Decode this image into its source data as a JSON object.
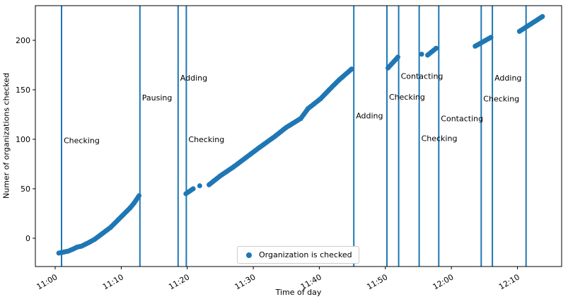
{
  "chart_data": {
    "type": "scatter",
    "title": "",
    "xlabel": "Time of day",
    "ylabel": "Numer of organizations checked",
    "legend": {
      "label": "Organization is checked",
      "position": "lower center"
    },
    "accent_color": "#1f77b4",
    "spine_color": "#000000",
    "legend_border_color": "#cccccc",
    "grid": false,
    "x_axis": {
      "unit": "minutes after 11:00",
      "lim": [
        -3.0,
        76.7
      ],
      "ticks": [
        {
          "t": 0,
          "label": "11:00"
        },
        {
          "t": 10,
          "label": "11:10"
        },
        {
          "t": 20,
          "label": "11:20"
        },
        {
          "t": 30,
          "label": "11:30"
        },
        {
          "t": 40,
          "label": "11:40"
        },
        {
          "t": 50,
          "label": "11:50"
        },
        {
          "t": 60,
          "label": "12:00"
        },
        {
          "t": 70,
          "label": "12:10"
        }
      ]
    },
    "y_axis": {
      "lim": [
        -28.6,
        235
      ],
      "ticks": [
        0,
        50,
        100,
        150,
        200
      ]
    },
    "point_step_min": 0.18,
    "series": [
      {
        "name": "Organization is checked",
        "marker": "circle",
        "segments": [
          [
            [
              0.55,
              -15
            ],
            [
              1.3,
              -14
            ],
            [
              2.0,
              -13
            ],
            [
              2.7,
              -11
            ],
            [
              3.3,
              -9
            ],
            [
              4.0,
              -8
            ],
            [
              4.6,
              -6
            ],
            [
              5.2,
              -4
            ],
            [
              6.0,
              -1
            ],
            [
              6.6,
              2
            ],
            [
              7.2,
              5
            ],
            [
              7.8,
              8
            ],
            [
              8.4,
              11
            ],
            [
              9.0,
              15
            ],
            [
              9.6,
              19
            ],
            [
              10.2,
              23
            ],
            [
              10.8,
              27
            ],
            [
              11.4,
              31
            ],
            [
              12.0,
              36
            ],
            [
              12.7,
              43
            ]
          ],
          [
            [
              19.8,
              45
            ],
            [
              20.9,
              50
            ]
          ],
          [
            [
              21.9,
              53
            ]
          ],
          [
            [
              23.3,
              54
            ],
            [
              25,
              63
            ],
            [
              27,
              72
            ],
            [
              29,
              82
            ],
            [
              31,
              92
            ],
            [
              33.3,
              103
            ],
            [
              35,
              112
            ],
            [
              37.2,
              121
            ],
            [
              38.3,
              131
            ],
            [
              40.2,
              141
            ],
            [
              41.5,
              150
            ],
            [
              43,
              160
            ],
            [
              44.9,
              171
            ]
          ],
          [
            [
              50.4,
              172
            ],
            [
              51.9,
              183
            ]
          ],
          [
            [
              55.5,
              186
            ]
          ],
          [
            [
              56.4,
              185
            ],
            [
              57.7,
              192
            ]
          ],
          [
            [
              63.6,
              194
            ],
            [
              66.0,
              203
            ]
          ],
          [
            [
              70.3,
              209
            ],
            [
              73.8,
              224
            ]
          ]
        ]
      }
    ],
    "event_lines": [
      {
        "t": 0.96,
        "label": "Checking",
        "label_y": 99
      },
      {
        "t": 12.83,
        "label": "Pausing",
        "label_y": 142
      },
      {
        "t": 18.62,
        "label": "Adding",
        "label_y": 162
      },
      {
        "t": 19.86,
        "label": "Checking",
        "label_y": 100
      },
      {
        "t": 45.23,
        "label": "Adding",
        "label_y": 124
      },
      {
        "t": 50.24,
        "label": "Checking",
        "label_y": 143
      },
      {
        "t": 52.02,
        "label": "Contacting",
        "label_y": 164
      },
      {
        "t": 55.12,
        "label": "Checking",
        "label_y": 101
      },
      {
        "t": 58.09,
        "label": "Contacting",
        "label_y": 121
      },
      {
        "t": 64.52,
        "label": "Checking",
        "label_y": 141
      },
      {
        "t": 66.21,
        "label": "Adding",
        "label_y": 162
      },
      {
        "t": 71.31,
        "label": "",
        "label_y": 0
      }
    ]
  }
}
